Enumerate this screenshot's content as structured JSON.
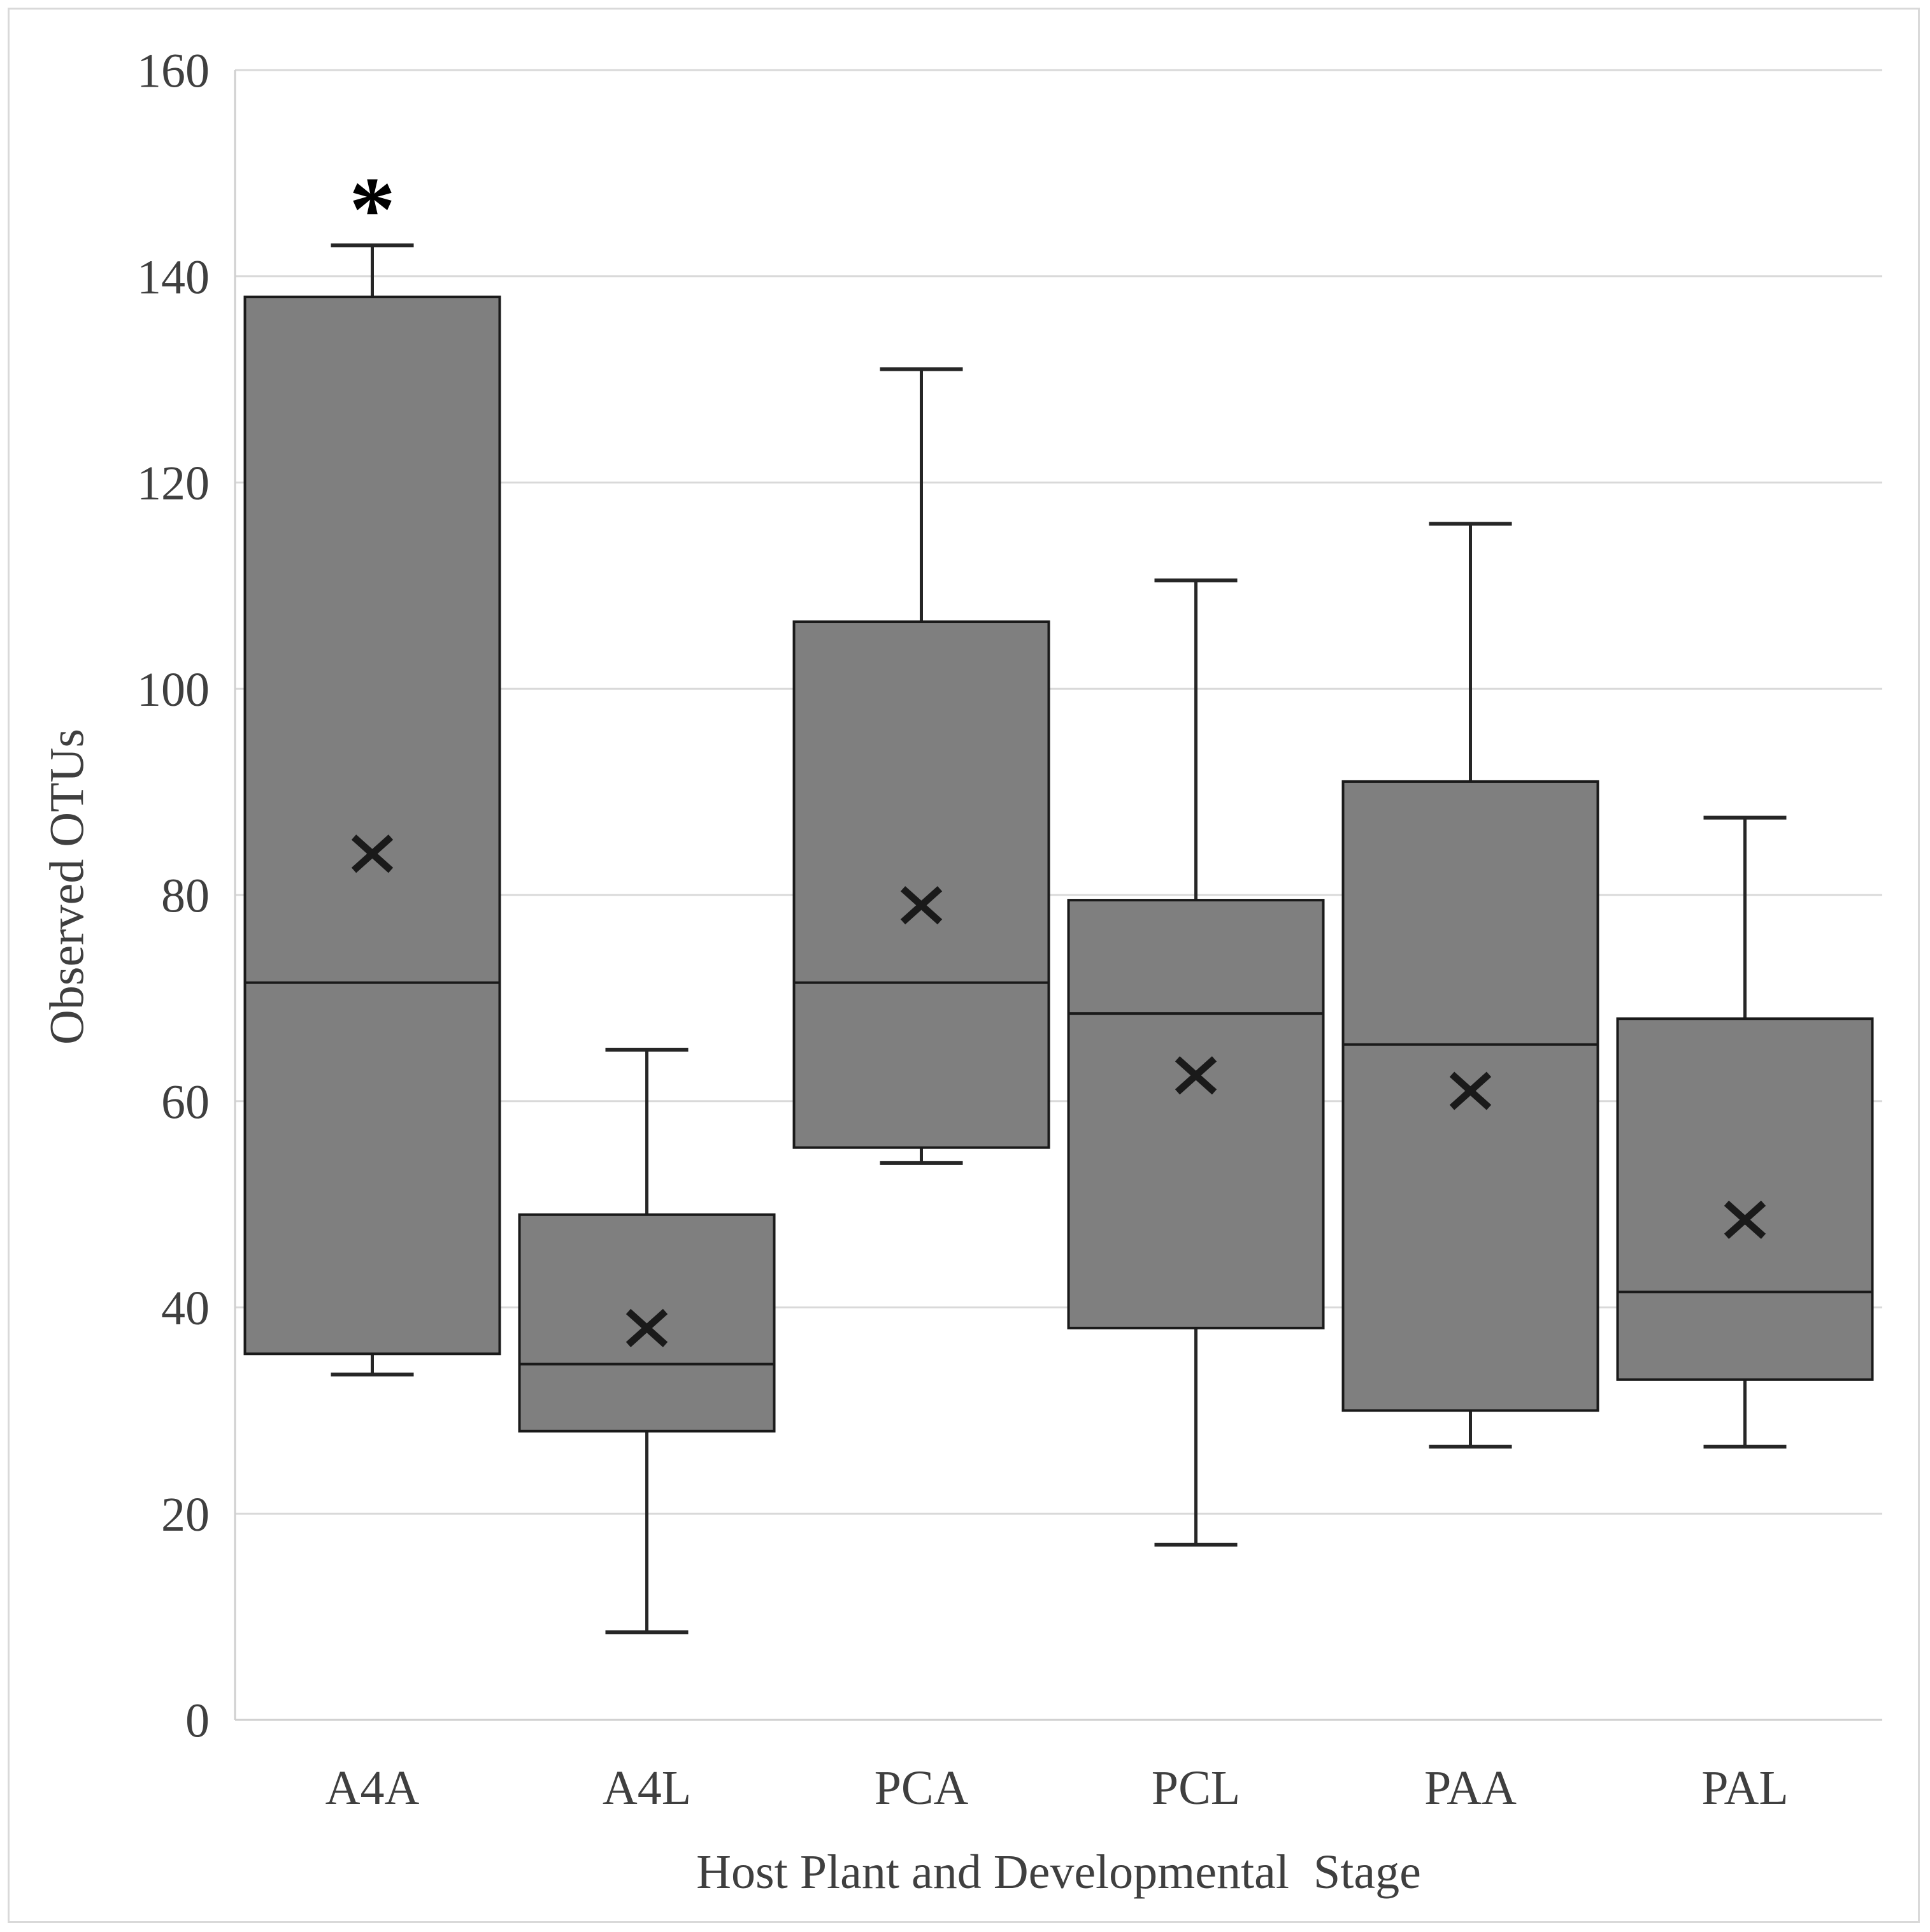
{
  "chart_data": {
    "type": "box",
    "title": "",
    "xlabel": "Host Plant and Developmental  Stage",
    "ylabel": "Observed OTUs",
    "ylim": [
      0,
      160
    ],
    "ytick_step": 20,
    "yticks": [
      0,
      20,
      40,
      60,
      80,
      100,
      120,
      140,
      160
    ],
    "grid": true,
    "legend": "none",
    "categories": [
      "A4A",
      "A4L",
      "PCA",
      "PCL",
      "PAA",
      "PAL"
    ],
    "series": [
      {
        "name": "A4A",
        "whisker_low": 33.5,
        "q1": 35.5,
        "median": 71.5,
        "q3": 138,
        "whisker_high": 143,
        "mean": 84
      },
      {
        "name": "A4L",
        "whisker_low": 8.5,
        "q1": 28,
        "median": 34.5,
        "q3": 49,
        "whisker_high": 65,
        "mean": 38
      },
      {
        "name": "PCA",
        "whisker_low": 54,
        "q1": 55.5,
        "median": 71.5,
        "q3": 106.5,
        "whisker_high": 131,
        "mean": 79
      },
      {
        "name": "PCL",
        "whisker_low": 17,
        "q1": 38,
        "median": 68.5,
        "q3": 79.5,
        "whisker_high": 110.5,
        "mean": 62.5
      },
      {
        "name": "PAA",
        "whisker_low": 26.5,
        "q1": 30,
        "median": 65.5,
        "q3": 91,
        "whisker_high": 116,
        "mean": 61
      },
      {
        "name": "PAL",
        "whisker_low": 26.5,
        "q1": 33,
        "median": 41.5,
        "q3": 68,
        "whisker_high": 87.5,
        "mean": 48.5
      }
    ],
    "annotations": [
      {
        "category": "A4A",
        "text": "*"
      }
    ],
    "colors": {
      "box_fill": "#7f7f7f",
      "box_border": "#1a1a1a",
      "median_line": "#1a1a1a",
      "whisker": "#262626",
      "mean_marker": "#1a1a1a",
      "gridline": "#d9d9d9",
      "axis_line": "#cfcfcf",
      "text": "#3f3f3f",
      "annotation": "#000000",
      "figure_border": "#d9d9d9",
      "background": "#ffffff"
    }
  }
}
